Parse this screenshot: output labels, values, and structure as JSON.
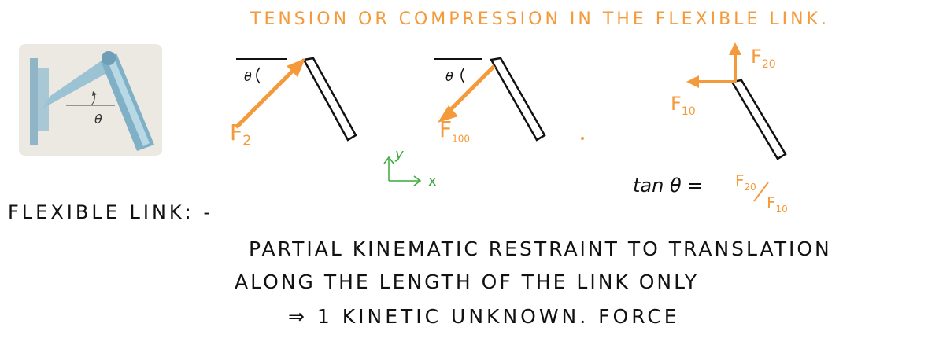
{
  "title": "TENSION OR COMPRESSION IN THE FLEXIBLE LINK.",
  "photo": {
    "theta_label": "θ"
  },
  "diagram1": {
    "angle_label": "θ",
    "force_label": "F",
    "force_sub": "2"
  },
  "diagram2": {
    "angle_label": "θ",
    "force_label": "F",
    "force_sub": "100"
  },
  "diagram3": {
    "fy_label": "F",
    "fy_sub": "20",
    "fx_label": "F",
    "fx_sub": "10"
  },
  "axes": {
    "y": "y",
    "x": "x"
  },
  "equation": {
    "lhs": "tan θ =",
    "num": "F",
    "num_sub": "20",
    "den": "F",
    "den_sub": "10"
  },
  "flexible_link_label": "FLEXIBLE LINK: -",
  "description_lines": [
    "PARTIAL KINEMATIC RESTRAINT TO TRANSLATION",
    "ALONG THE LENGTH OF THE LINK ONLY",
    "⇒ 1 KINETIC UNKNOWN. FORCE"
  ],
  "colors": {
    "orange": "#f59a3a",
    "green": "#3aa83a",
    "link": "#111111"
  }
}
